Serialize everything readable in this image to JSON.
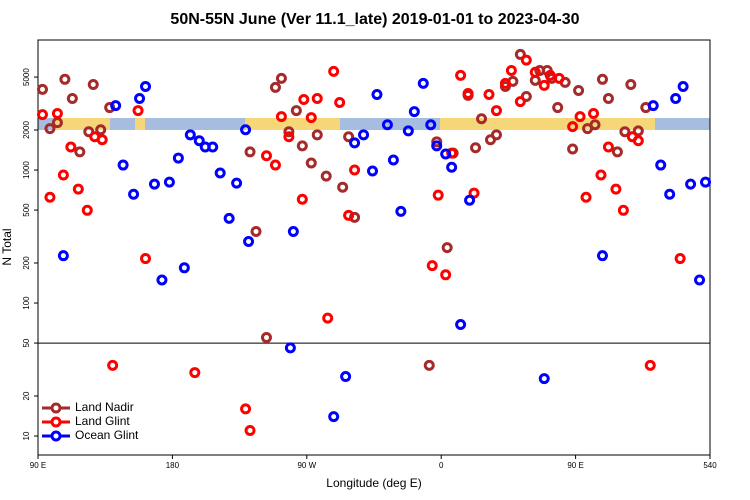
{
  "chart_data": {
    "type": "scatter",
    "title": "50N-55N June (Ver 11.1_late)   2019-01-01 to 2023-04-30",
    "x_label": "Longitude (deg E)",
    "y_label": "N Total",
    "xlim": [
      90,
      540
    ],
    "ylim": [
      7.2,
      9500
    ],
    "log_y": true,
    "hline": 50,
    "legend": "lower left",
    "xticks": [
      {
        "value": 90,
        "label": "90 E"
      },
      180,
      {
        "value": 270,
        "label": "90 W"
      },
      {
        "value": 360,
        "label": "0"
      },
      {
        "value": 450,
        "label": "90 E"
      },
      540
    ],
    "yticks": [
      10,
      20,
      50,
      100,
      200,
      500,
      1000,
      2000,
      5000
    ],
    "series": [
      {
        "name": "Land Nadir",
        "color": "#a52a2a",
        "x": [
          93,
          98,
          103,
          108,
          113,
          118,
          124,
          127,
          132,
          138,
          232,
          236,
          243,
          249,
          253,
          258,
          263,
          267,
          273,
          277,
          283,
          294,
          298,
          302,
          352,
          357,
          364,
          368,
          378,
          383,
          387,
          393,
          397,
          403,
          408,
          413,
          417,
          423,
          426,
          431,
          434,
          438,
          443,
          448,
          452,
          458,
          463,
          468,
          472,
          478,
          483,
          487,
          492,
          497
        ],
        "values": [
          4040,
          2050,
          2270,
          4810,
          3450,
          1370,
          1940,
          4400,
          2010,
          2950,
          1370,
          345,
          55,
          4180,
          4890,
          1940,
          2800,
          1520,
          1130,
          1840,
          900,
          743,
          1780,
          441,
          34,
          1630,
          261,
          1340,
          3640,
          1470,
          2430,
          1690,
          1840,
          4250,
          4640,
          7400,
          3570,
          4720,
          5600,
          5600,
          4890,
          2950,
          4560,
          1440,
          3960,
          2050,
          2190,
          4810,
          3450,
          1370,
          1940,
          4400,
          1970,
          2950
        ]
      },
      {
        "name": "Land Glint",
        "color": "#ff0000",
        "x": [
          93,
          98,
          103,
          107,
          112,
          117,
          123,
          128,
          133,
          140,
          157,
          162,
          195,
          229,
          232,
          243,
          249,
          253,
          258,
          267,
          268,
          273,
          277,
          284,
          288,
          292,
          298,
          302,
          354,
          358,
          363,
          367,
          373,
          378,
          382,
          392,
          397,
          403,
          407,
          413,
          417,
          423,
          429,
          433,
          439,
          448,
          453,
          457,
          462,
          467,
          472,
          477,
          482,
          488,
          492,
          500,
          520
        ],
        "values": [
          2610,
          624,
          2660,
          917,
          1490,
          718,
          498,
          1780,
          1690,
          34,
          2800,
          216,
          30,
          16,
          11,
          1280,
          1090,
          2520,
          1780,
          603,
          3390,
          2480,
          3450,
          77,
          5520,
          3220,
          456,
          1000,
          191,
          647,
          163,
          1340,
          5150,
          3760,
          670,
          3700,
          2800,
          4480,
          5600,
          3270,
          6700,
          5430,
          4330,
          5150,
          4890,
          2120,
          2520,
          624,
          2660,
          917,
          1490,
          718,
          498,
          1780,
          1660,
          34,
          216
        ]
      },
      {
        "name": "Ocean Glint",
        "color": "#0000ff",
        "x": [
          107,
          142,
          147,
          154,
          158,
          162,
          168,
          173,
          178,
          184,
          188,
          192,
          198,
          202,
          207,
          212,
          218,
          223,
          229,
          231,
          261,
          259,
          288,
          296,
          302,
          308,
          314,
          317,
          324,
          328,
          333,
          338,
          342,
          348,
          353,
          357,
          363,
          367,
          373,
          379,
          429,
          468,
          502,
          507,
          513,
          517,
          522,
          527,
          533,
          537
        ],
        "values": [
          227,
          3050,
          1090,
          658,
          3450,
          4250,
          783,
          149,
          811,
          1230,
          184,
          1840,
          1660,
          1490,
          1490,
          950,
          433,
          797,
          2010,
          290,
          345,
          46,
          14,
          28,
          1600,
          1840,
          983,
          3700,
          2190,
          1190,
          489,
          1970,
          2750,
          4480,
          2190,
          1520,
          1320,
          1050,
          69,
          593,
          27,
          227,
          3050,
          1090,
          658,
          3450,
          4250,
          783,
          149,
          811
        ]
      }
    ]
  }
}
